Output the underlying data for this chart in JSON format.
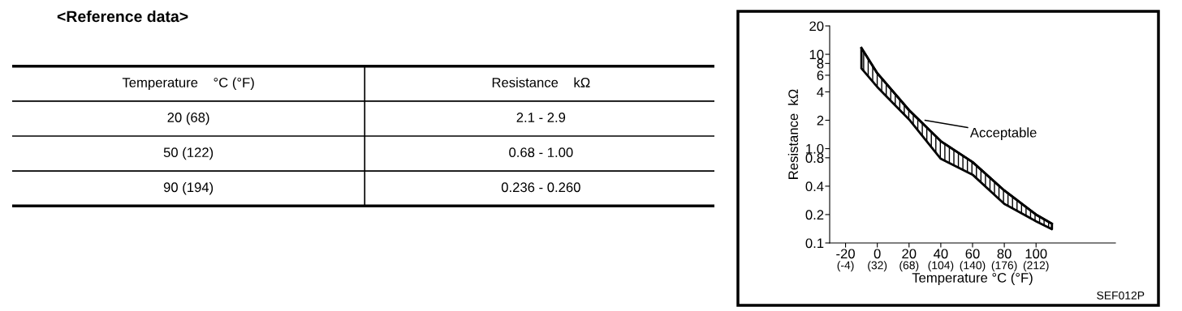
{
  "chart_data": [
    {
      "type": "other",
      "title": "<Reference data>",
      "annotations": [
        "Temperature    °C (°F)",
        "Resistance    kΩ",
        "20 (68)",
        "2.1 - 2.9",
        "50 (122)",
        "0.68 - 1.00",
        "90 (194)",
        "0.236 - 0.260"
      ]
    },
    {
      "type": "line",
      "xlabel": "Temperature °C (°F)",
      "ylabel": "Resistance  kΩ",
      "x": [
        -10,
        0,
        20,
        40,
        60,
        80,
        100,
        110
      ],
      "series": [
        {
          "color": "#000000",
          "values": [
            11.7,
            6.3,
            2.56,
            1.2,
            0.72,
            0.36,
            0.2,
            0.16
          ],
          "upper": [
            11.7,
            6.3,
            2.56,
            1.2,
            0.72,
            0.36,
            0.2,
            0.16
          ],
          "lower": [
            7.1,
            4.5,
            2.04,
            0.78,
            0.53,
            0.26,
            0.17,
            0.14
          ]
        }
      ],
      "log": "y",
      "xlim": [
        -30,
        150
      ],
      "ylim": [
        0.1,
        20
      ],
      "xticks": [
        -20,
        0,
        20,
        40,
        60,
        80,
        100
      ],
      "x2lim": [
        -22,
        302
      ],
      "x2ticks": [
        {
          "value": -4,
          "label": "(-4)"
        },
        {
          "value": 32,
          "label": "(32)"
        },
        {
          "value": 68,
          "label": "(68)"
        },
        {
          "value": 104,
          "label": "(104)"
        },
        {
          "value": 140,
          "label": "(140)"
        },
        {
          "value": 176,
          "label": "(176)"
        },
        {
          "value": 212,
          "label": "(212)"
        }
      ],
      "yticks": [
        0.1,
        0.2,
        0.4,
        0.8,
        {
          "value": 1,
          "label": "1.0"
        },
        2,
        4,
        6,
        8,
        10,
        20
      ],
      "grid": false,
      "legend": false,
      "marker": "none",
      "line_style": "solid",
      "annotations": [
        {
          "text": "Acceptable",
          "x": 30,
          "y": 2
        },
        "SEF012P"
      ]
    }
  ]
}
